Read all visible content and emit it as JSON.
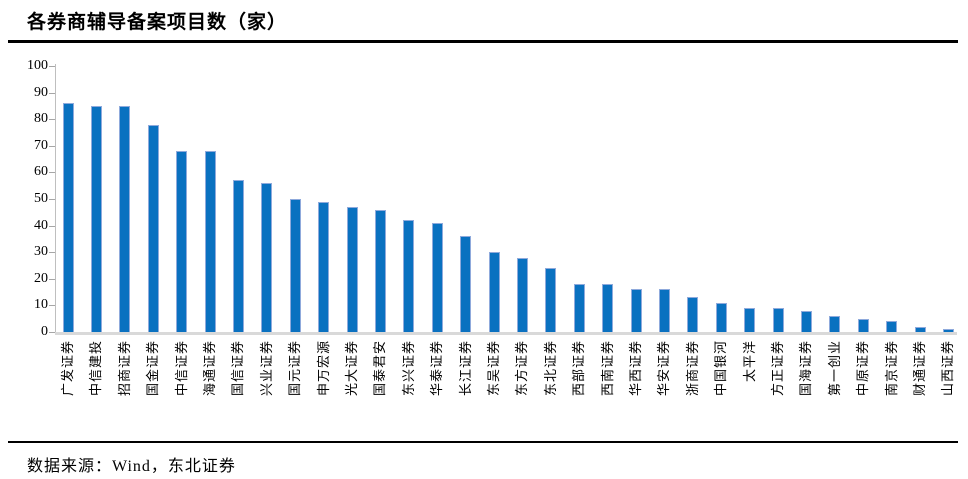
{
  "header": {
    "title": "各券商辅导备案项目数（家）"
  },
  "footer": {
    "source": "数据来源：Wind，东北证券"
  },
  "chart_data": {
    "type": "bar",
    "title": "各券商辅导备案项目数（家）",
    "xlabel": "",
    "ylabel": "",
    "ylim": [
      0,
      100
    ],
    "ytick_step": 10,
    "yticks": [
      0,
      10,
      20,
      30,
      40,
      50,
      60,
      70,
      80,
      90,
      100
    ],
    "grid": false,
    "legend_position": "none",
    "bar_color": "#0a71c0",
    "categories": [
      "广发证券",
      "中信建投",
      "招商证券",
      "国金证券",
      "中信证券",
      "海通证券",
      "国信证券",
      "兴业证券",
      "国元证券",
      "申万宏源",
      "光大证券",
      "国泰君安",
      "东兴证券",
      "华泰证券",
      "长江证券",
      "东吴证券",
      "东方证券",
      "东北证券",
      "西部证券",
      "西南证券",
      "华西证券",
      "华安证券",
      "浙商证券",
      "中国银河",
      "太平洋",
      "方正证券",
      "国海证券",
      "第一创业",
      "中原证券",
      "南京证券",
      "财通证券",
      "山西证券"
    ],
    "values": [
      86,
      85,
      85,
      78,
      68,
      68,
      57,
      56,
      50,
      49,
      47,
      46,
      42,
      41,
      36,
      30,
      28,
      24,
      18,
      18,
      16,
      16,
      13,
      11,
      9,
      9,
      8,
      6,
      5,
      4,
      2,
      1
    ]
  }
}
